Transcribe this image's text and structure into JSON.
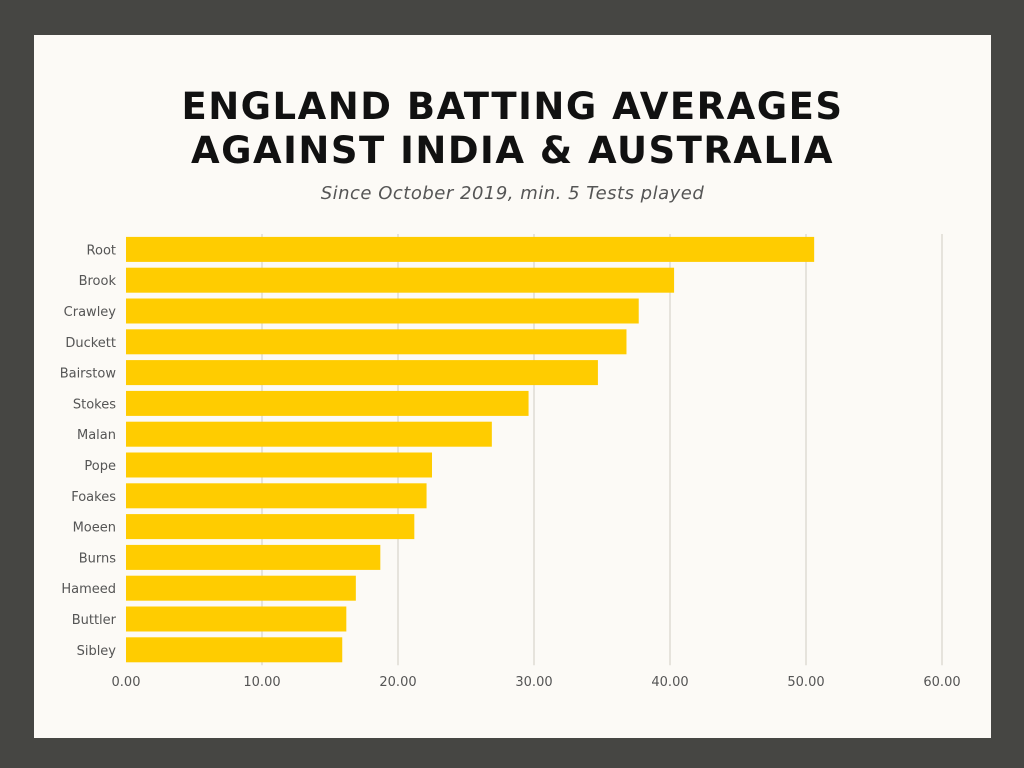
{
  "chart_data": {
    "type": "bar",
    "orientation": "horizontal",
    "title_lines": [
      "ENGLAND BATTING AVERAGES",
      "AGAINST INDIA & AUSTRALIA"
    ],
    "subtitle": "Since October 2019, min. 5 Tests played",
    "categories": [
      "Root",
      "Brook",
      "Crawley",
      "Duckett",
      "Bairstow",
      "Stokes",
      "Malan",
      "Pope",
      "Foakes",
      "Moeen",
      "Burns",
      "Hameed",
      "Buttler",
      "Sibley"
    ],
    "values": [
      50.6,
      40.3,
      37.7,
      36.8,
      34.7,
      29.6,
      26.9,
      22.5,
      22.1,
      21.2,
      18.7,
      16.9,
      16.2,
      15.9
    ],
    "xlim": [
      0,
      60
    ],
    "xticks": [
      "0.00",
      "10.00",
      "20.00",
      "30.00",
      "40.00",
      "50.00",
      "60.00"
    ],
    "xtick_values": [
      0,
      10,
      20,
      30,
      40,
      50,
      60
    ],
    "bar_color": "#ffcc00",
    "grid": true,
    "grid_color": "#dedbd4"
  }
}
